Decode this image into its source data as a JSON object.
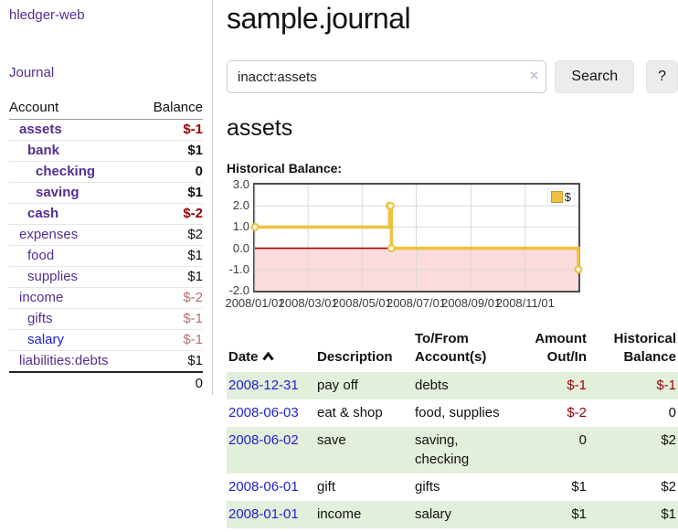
{
  "app": {
    "brand": "hledger-web",
    "nav_journal": "Journal"
  },
  "sidebar": {
    "accounts_header": {
      "account": "Account",
      "balance": "Balance"
    },
    "accounts": [
      {
        "name": "assets",
        "balance": "$-1",
        "depth": 1,
        "bold": true,
        "amount_class": "neg-strong"
      },
      {
        "name": "bank",
        "balance": "$1",
        "depth": 2,
        "bold": true,
        "amount_class": ""
      },
      {
        "name": "checking",
        "balance": "0",
        "depth": 3,
        "bold": true,
        "amount_class": ""
      },
      {
        "name": "saving",
        "balance": "$1",
        "depth": 3,
        "bold": true,
        "amount_class": ""
      },
      {
        "name": "cash",
        "balance": "$-2",
        "depth": 2,
        "bold": true,
        "amount_class": "neg-strong"
      },
      {
        "name": "expenses",
        "balance": "$2",
        "depth": 1,
        "bold": false,
        "amount_class": ""
      },
      {
        "name": "food",
        "balance": "$1",
        "depth": 2,
        "bold": false,
        "amount_class": ""
      },
      {
        "name": "supplies",
        "balance": "$1",
        "depth": 2,
        "bold": false,
        "amount_class": ""
      },
      {
        "name": "income",
        "balance": "$-2",
        "depth": 1,
        "bold": false,
        "amount_class": "neg-muted"
      },
      {
        "name": "gifts",
        "balance": "$-1",
        "depth": 2,
        "bold": false,
        "amount_class": "neg-muted"
      },
      {
        "name": "salary",
        "balance": "$-1",
        "depth": 2,
        "bold": false,
        "amount_class": "neg-muted",
        "link_class": "unvisited"
      },
      {
        "name": "liabilities:debts",
        "balance": "$1",
        "depth": 1,
        "bold": false,
        "amount_class": ""
      }
    ],
    "total": "0"
  },
  "main": {
    "title": "sample.journal",
    "search": {
      "value": "inacct:assets",
      "clear_icon": "×",
      "search_label": "Search",
      "help_label": "?"
    },
    "account_heading": "assets",
    "chart_label": "Historical Balance:"
  },
  "chart_data": {
    "type": "line",
    "title": "Historical Balance",
    "step": true,
    "series": [
      {
        "name": "$",
        "color": "#edc240",
        "points": [
          [
            "2008-01-01",
            1
          ],
          [
            "2008-06-01",
            2
          ],
          [
            "2008-06-02",
            2
          ],
          [
            "2008-06-03",
            0
          ],
          [
            "2008-12-31",
            -1
          ]
        ]
      }
    ],
    "x_ticks": [
      "2008/01/01",
      "2008/03/01",
      "2008/05/01",
      "2008/07/01",
      "2008/09/01",
      "2008/11/01"
    ],
    "y_ticks": [
      "3.0",
      "2.0",
      "1.0",
      "0.0",
      "-1.0",
      "-2.0"
    ],
    "ylim": [
      -2,
      3
    ],
    "xlim": [
      "2008-01-01",
      "2008-12-31"
    ],
    "legend_position": "top-right",
    "grid": true,
    "negative_region_color": "#fbdbdb",
    "zero_line_color": "#a40000",
    "grid_color": "#d9d9d9"
  },
  "register": {
    "columns": [
      "Date",
      "Description",
      "To/From Account(s)",
      "Amount Out/In",
      "Historical Balance"
    ],
    "rows": [
      {
        "date": "2008-12-31",
        "description": "pay off",
        "accounts": "debts",
        "amount": "$-1",
        "balance": "$-1"
      },
      {
        "date": "2008-06-03",
        "description": "eat & shop",
        "accounts": "food, supplies",
        "amount": "$-2",
        "balance": "0"
      },
      {
        "date": "2008-06-02",
        "description": "save",
        "accounts": "saving, checking",
        "amount": "0",
        "balance": "$2"
      },
      {
        "date": "2008-06-01",
        "description": "gift",
        "accounts": "gifts",
        "amount": "$1",
        "balance": "$2"
      },
      {
        "date": "2008-01-01",
        "description": "income",
        "accounts": "salary",
        "amount": "$1",
        "balance": "$1"
      }
    ]
  }
}
